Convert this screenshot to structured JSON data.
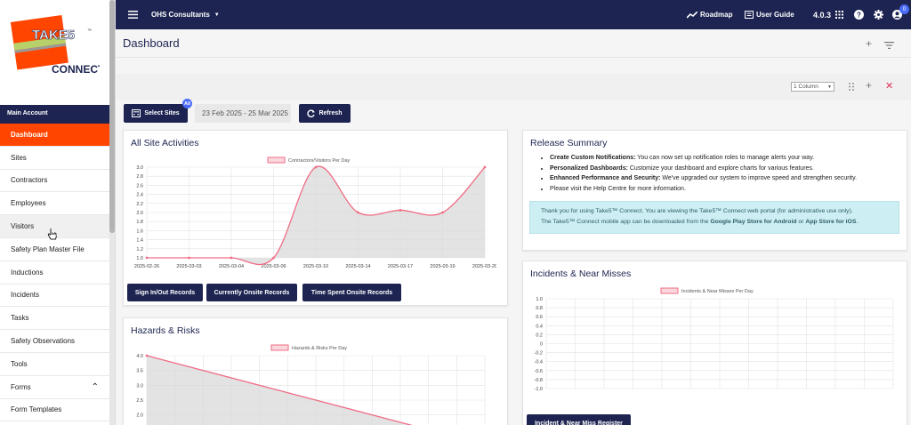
{
  "app": {
    "logo_top": "TAKE5",
    "logo_bottom": "CONNECT",
    "logo_tm": "™",
    "org_name": "OHS Consultants",
    "roadmap_label": "Roadmap",
    "guide_label": "User Guide",
    "version": "4.0.3",
    "notif_count": "0"
  },
  "sidebar": {
    "section": "Main Account",
    "items": [
      {
        "label": "Dashboard",
        "state": "active"
      },
      {
        "label": "Sites",
        "state": ""
      },
      {
        "label": "Contractors",
        "state": ""
      },
      {
        "label": "Employees",
        "state": ""
      },
      {
        "label": "Visitors",
        "state": "hover"
      },
      {
        "label": "Safety Plan Master File",
        "state": ""
      },
      {
        "label": "Inductions",
        "state": ""
      },
      {
        "label": "Incidents",
        "state": ""
      },
      {
        "label": "Tasks",
        "state": ""
      },
      {
        "label": "Safety Observations",
        "state": ""
      },
      {
        "label": "Tools",
        "state": ""
      },
      {
        "label": "Forms",
        "state": "expanded"
      },
      {
        "label": "Form Templates",
        "state": ""
      }
    ]
  },
  "page": {
    "title": "Dashboard",
    "column_select": "1 Column"
  },
  "controls": {
    "select_sites": "Select Sites",
    "all_badge": "All",
    "date_range": "23 Feb 2025 - 25 Mar 2025",
    "refresh": "Refresh"
  },
  "activities": {
    "title": "All Site Activities",
    "buttons": [
      "Sign In/Out Records",
      "Currently Onsite Records",
      "Time Spent Onsite Records"
    ]
  },
  "hazards": {
    "title": "Hazards & Risks"
  },
  "release": {
    "title": "Release Summary",
    "items": [
      {
        "bold": "Create Custom Notifications:",
        "text": " You can now set up notification roles to manage alerts your way."
      },
      {
        "bold": "Personalized Dashboards:",
        "text": " Customize your dashboard and explore charts for various features."
      },
      {
        "bold": "Enhanced Performance and Security:",
        "text": " We've upgraded our system to improve speed and strengthen security."
      },
      {
        "bold": "",
        "text": "Please visit the Help Centre for more information."
      }
    ],
    "info_line1": "Thank you for using Take5™ Connect. You are viewing the Take5™ Connect web portal (for administrative use only).",
    "info_line2_pre": "The Take5™ Connect mobile app can be downloaded from the ",
    "info_line2_bold1": "Google Play Store for Android",
    "info_line2_mid": " or ",
    "info_line2_bold2": "App Store for iOS",
    "info_line2_post": "."
  },
  "incidents": {
    "title": "Incidents & Near Misses",
    "register_button": "Incident & Near Miss Register"
  },
  "colors": {
    "navy": "#1d2451",
    "accent": "#ff4500",
    "series": "#f06d85"
  },
  "chart_data": [
    {
      "id": "activities",
      "type": "area",
      "series": [
        {
          "name": "Contractors/Visitors Per Day",
          "values": [
            1.0,
            1.0,
            1.0,
            1.0,
            3.0,
            2.0,
            2.05,
            2.0,
            3.0
          ]
        }
      ],
      "categories": [
        "2025-02-26",
        "2025-03-03",
        "2025-03-04",
        "2025-03-06",
        "2025-03-10",
        "2025-03-14",
        "2025-03-17",
        "2025-03-19",
        "2025-03-20"
      ],
      "yticks": [
        "1.0",
        "1.2",
        "1.4",
        "1.6",
        "1.8",
        "2.0",
        "2.2",
        "2.4",
        "2.6",
        "2.8",
        "3.0"
      ],
      "ylim": [
        1.0,
        3.0
      ]
    },
    {
      "id": "hazards",
      "type": "area",
      "series": [
        {
          "name": "Hazards & Risks Per Day",
          "values": [
            4.0,
            1.0
          ]
        }
      ],
      "yticks": [
        "2.0",
        "2.5",
        "3.0",
        "3.5",
        "4.0"
      ],
      "ylim": [
        1.0,
        4.0
      ]
    },
    {
      "id": "incidents",
      "type": "line",
      "series": [
        {
          "name": "Incidents & Near Misses Per Day",
          "values": []
        }
      ],
      "yticks": [
        "-1.0",
        "-0.8",
        "-0.6",
        "-0.4",
        "-0.2",
        "0",
        "0.2",
        "0.4",
        "0.6",
        "0.8",
        "1.0"
      ],
      "ylim": [
        -1.0,
        1.0
      ]
    }
  ]
}
